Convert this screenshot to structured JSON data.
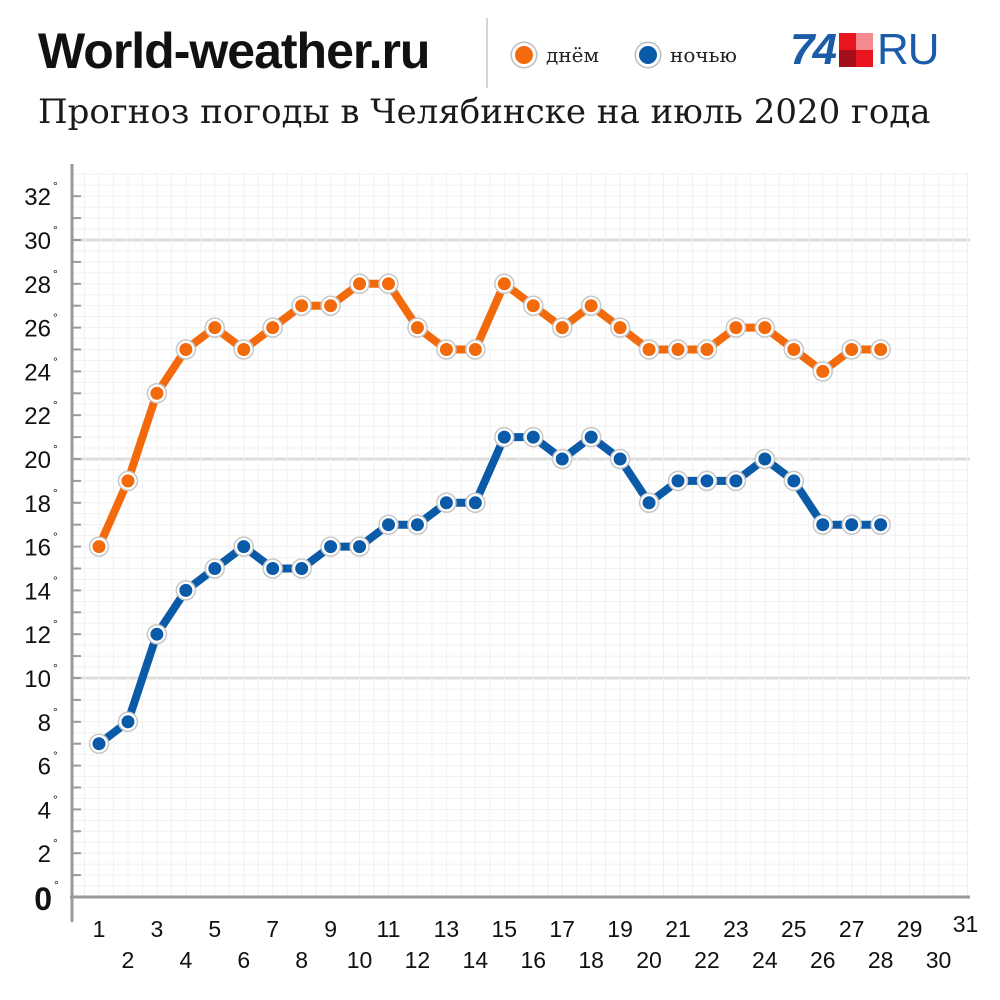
{
  "header": {
    "brand": "World-weather.ru",
    "subtitle": "Прогноз погоды в Челябинске на июль 2020 года",
    "logo_number": "74",
    "logo_suffix": "RU"
  },
  "colors": {
    "day": "#f26a0c",
    "night": "#0a5aa8",
    "logo_blue": "#1a5ca8",
    "logo_red": "#e8141e",
    "logo_pink": "#f58a8f",
    "logo_dark_red": "#a3101a"
  },
  "chart_data": {
    "type": "line",
    "x": [
      1,
      2,
      3,
      4,
      5,
      6,
      7,
      8,
      9,
      10,
      11,
      12,
      13,
      14,
      15,
      16,
      17,
      18,
      19,
      20,
      21,
      22,
      23,
      24,
      25,
      26,
      27,
      28
    ],
    "x_ticks": [
      1,
      2,
      3,
      4,
      5,
      6,
      7,
      8,
      9,
      10,
      11,
      12,
      13,
      14,
      15,
      16,
      17,
      18,
      19,
      20,
      21,
      22,
      23,
      24,
      25,
      26,
      27,
      28,
      29,
      30,
      31
    ],
    "y_ticks": [
      0,
      2,
      4,
      6,
      8,
      10,
      12,
      14,
      16,
      18,
      20,
      22,
      24,
      26,
      28,
      30,
      32
    ],
    "xlim": [
      1,
      31
    ],
    "ylim": [
      0,
      33
    ],
    "tick_suffix": "°",
    "grid": true,
    "legend_position": "top",
    "series": [
      {
        "name": "днём",
        "color": "#f26a0c",
        "values": [
          16,
          19,
          23,
          25,
          26,
          25,
          26,
          27,
          27,
          28,
          28,
          26,
          25,
          25,
          28,
          27,
          26,
          27,
          26,
          25,
          25,
          25,
          26,
          26,
          25,
          24,
          25,
          25
        ]
      },
      {
        "name": "ночью",
        "color": "#0a5aa8",
        "values": [
          7,
          8,
          12,
          14,
          15,
          16,
          15,
          15,
          16,
          16,
          17,
          17,
          18,
          18,
          21,
          21,
          20,
          21,
          20,
          18,
          19,
          19,
          19,
          20,
          19,
          17,
          17,
          17
        ]
      }
    ]
  }
}
